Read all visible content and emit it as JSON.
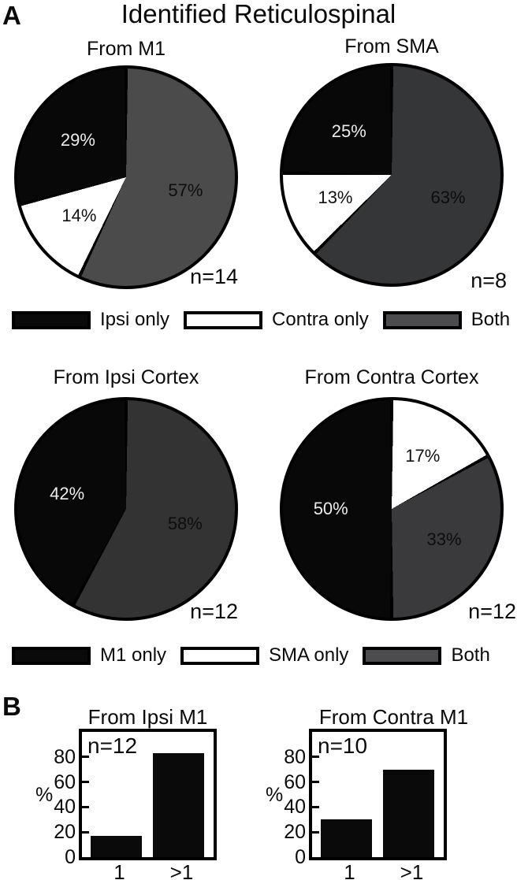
{
  "panel_a": {
    "label": "A",
    "title": "Identified Reticulospinal"
  },
  "panel_b": {
    "label": "B"
  },
  "legends": [
    {
      "items": [
        {
          "label": "Ipsi only",
          "color": "#0a0a0a"
        },
        {
          "label": "Contra only",
          "color": "#ffffff"
        },
        {
          "label": "Both",
          "color": "#4c4c4e"
        }
      ]
    },
    {
      "items": [
        {
          "label": "M1 only",
          "color": "#0a0a0a"
        },
        {
          "label": "SMA only",
          "color": "#ffffff"
        },
        {
          "label": "Both",
          "color": "#4c4c4e"
        }
      ]
    }
  ],
  "chart_data": [
    {
      "type": "pie",
      "title": "From M1",
      "n_label": "n=14",
      "unit": "%",
      "start_angle_deg": 0,
      "direction": "clockwise",
      "slices": [
        {
          "label": "Both",
          "value": 57,
          "display": "57%",
          "color": "#4b4b4b",
          "text_color": "#0d0d0d"
        },
        {
          "label": "Contra only",
          "value": 14,
          "display": "14%",
          "color": "#ffffff",
          "text_color": "#111111"
        },
        {
          "label": "Ipsi only",
          "value": 29,
          "display": "29%",
          "color": "#080808",
          "text_color": "#ececec"
        }
      ]
    },
    {
      "type": "pie",
      "title": "From SMA",
      "n_label": "n=8",
      "unit": "%",
      "start_angle_deg": 0,
      "direction": "clockwise",
      "slices": [
        {
          "label": "Both",
          "value": 63,
          "display": "63%",
          "color": "#343638",
          "text_color": "#0d0d0d"
        },
        {
          "label": "Contra only",
          "value": 13,
          "display": "13%",
          "color": "#ffffff",
          "text_color": "#111111"
        },
        {
          "label": "Ipsi only",
          "value": 25,
          "display": "25%",
          "color": "#080808",
          "text_color": "#ececec"
        }
      ]
    },
    {
      "type": "pie",
      "title": "From Ipsi Cortex",
      "n_label": "n=12",
      "unit": "%",
      "start_angle_deg": 0,
      "direction": "clockwise",
      "slices": [
        {
          "label": "Both",
          "value": 58,
          "display": "58%",
          "color": "#333333",
          "text_color": "#0d0d0d"
        },
        {
          "label": "M1 only",
          "value": 42,
          "display": "42%",
          "color": "#080808",
          "text_color": "#ececec"
        }
      ]
    },
    {
      "type": "pie",
      "title": "From Contra Cortex",
      "n_label": "n=12",
      "unit": "%",
      "start_angle_deg": 0,
      "direction": "clockwise",
      "slices": [
        {
          "label": "SMA only",
          "value": 17,
          "display": "17%",
          "color": "#ffffff",
          "text_color": "#111111"
        },
        {
          "label": "Both",
          "value": 33,
          "display": "33%",
          "color": "#3a3a3c",
          "text_color": "#0d0d0d"
        },
        {
          "label": "M1 only",
          "value": 50,
          "display": "50%",
          "color": "#080808",
          "text_color": "#ececec"
        }
      ]
    },
    {
      "type": "bar",
      "title": "From Ipsi M1",
      "n_label": "n=12",
      "xlabel": "",
      "ylabel": "%",
      "categories": [
        "1",
        ">1"
      ],
      "values": [
        17,
        83
      ],
      "yticks": [
        0,
        20,
        40,
        60,
        80
      ],
      "ylim": [
        0,
        100
      ],
      "bar_color": "#0a0a0a",
      "grid": false
    },
    {
      "type": "bar",
      "title": "From Contra M1",
      "n_label": "n=10",
      "xlabel": "",
      "ylabel": "%",
      "categories": [
        "1",
        ">1"
      ],
      "values": [
        30,
        70
      ],
      "yticks": [
        0,
        20,
        40,
        60,
        80
      ],
      "ylim": [
        0,
        100
      ],
      "bar_color": "#0a0a0a",
      "grid": false
    }
  ]
}
